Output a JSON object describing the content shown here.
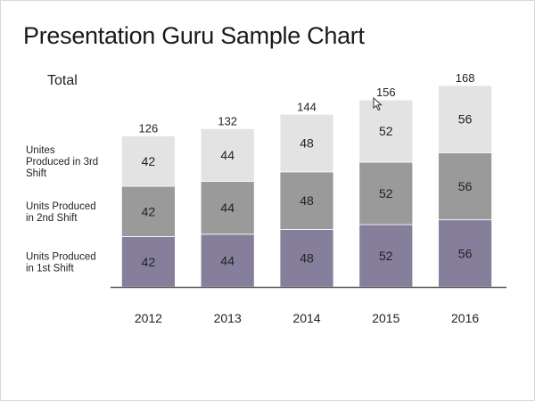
{
  "slide": {
    "title": "Presentation Guru Sample Chart"
  },
  "chart_data": {
    "type": "bar",
    "stacked": true,
    "categories": [
      "2012",
      "2013",
      "2014",
      "2015",
      "2016"
    ],
    "series": [
      {
        "name": "Units Produced in 1st Shift",
        "values": [
          42,
          44,
          48,
          52,
          56
        ],
        "color": "#857f9c"
      },
      {
        "name": "Units Produced in 2nd Shift",
        "values": [
          42,
          44,
          48,
          52,
          56
        ],
        "color": "#9a9a9a"
      },
      {
        "name": "Unites Produced in 3rd Shift",
        "values": [
          42,
          44,
          48,
          52,
          56
        ],
        "color": "#e3e3e3"
      }
    ],
    "legend_lines": [
      [
        "Units Produced",
        "in 1st Shift"
      ],
      [
        "Units Produced",
        "in 2nd Shift"
      ],
      [
        "Unites",
        "Produced in 3rd",
        "Shift"
      ]
    ],
    "legend_position": "left",
    "totals": [
      126,
      132,
      144,
      156,
      168
    ],
    "totals_label": "Total",
    "ylim": [
      0,
      185
    ],
    "grid": false,
    "colors": {
      "axis": "#555555",
      "text": "#222222"
    }
  }
}
